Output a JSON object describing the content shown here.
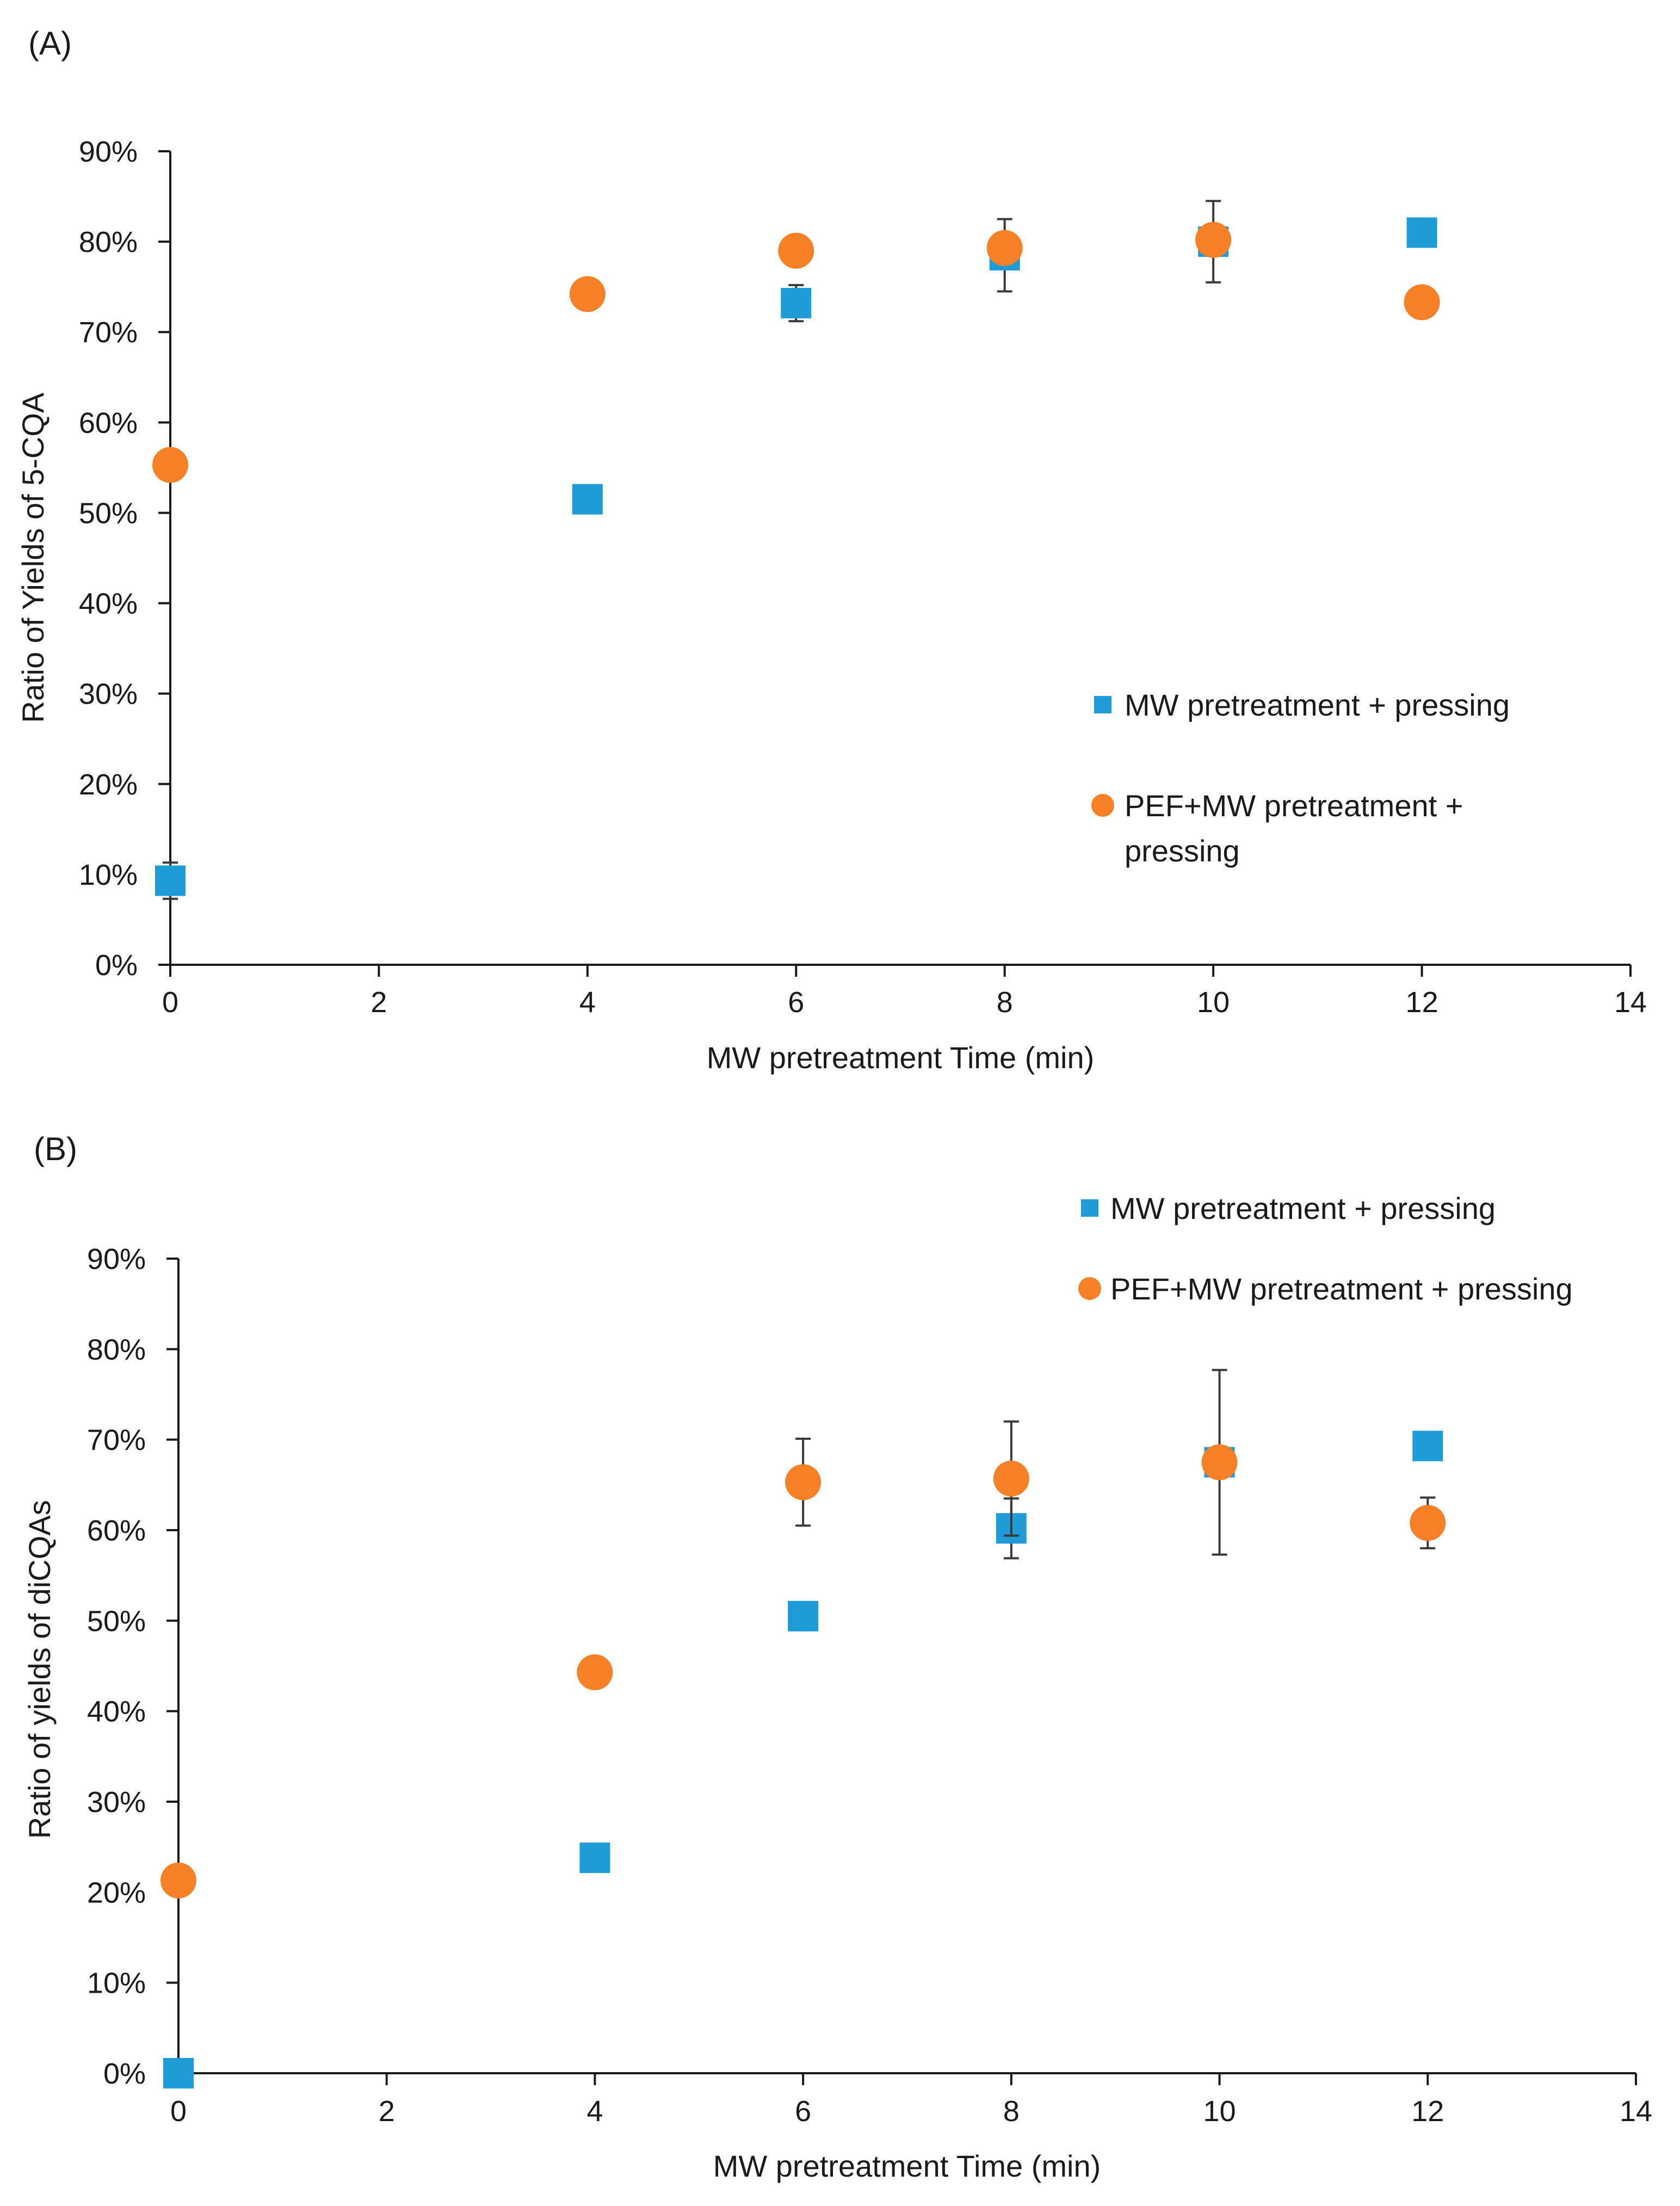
{
  "colors": {
    "series1": "#1f9bd7",
    "series2": "#f58026",
    "axis": "#1a1a1a",
    "errorbar": "#3a3a3a"
  },
  "chart_data": [
    {
      "type": "scatter",
      "panel_label": "(A)",
      "title": "",
      "xlabel": "MW pretreatment Time (min)",
      "ylabel": "Ratio of  Yields of 5-CQA",
      "xlim": [
        0,
        14
      ],
      "ylim": [
        0,
        0.9
      ],
      "x_ticks": [
        0,
        2,
        4,
        6,
        8,
        10,
        12,
        14
      ],
      "y_ticks": [
        0,
        0.1,
        0.2,
        0.3,
        0.4,
        0.5,
        0.6,
        0.7,
        0.8,
        0.9
      ],
      "x_tick_labels": [
        "0",
        "2",
        "4",
        "6",
        "8",
        "10",
        "12",
        "14"
      ],
      "y_tick_labels": [
        "0%",
        "10%",
        "20%",
        "30%",
        "40%",
        "50%",
        "60%",
        "70%",
        "80%",
        "90%"
      ],
      "grid": false,
      "legend_position": "center-right",
      "legend_lines": [
        [
          "MW pretreatment + pressing"
        ],
        [
          "PEF+MW pretreatment +",
          "pressing"
        ]
      ],
      "series": [
        {
          "name": "MW pretreatment + pressing",
          "marker": "square",
          "x": [
            0,
            4,
            6,
            8,
            10,
            12
          ],
          "y": [
            0.093,
            0.515,
            0.732,
            0.785,
            0.8,
            0.81
          ],
          "err": [
            0.02,
            0.005,
            0.02,
            0.04,
            0.045,
            0.005
          ]
        },
        {
          "name": "PEF+MW pretreatment + pressing",
          "marker": "circle",
          "x": [
            0,
            4,
            6,
            8,
            10,
            12
          ],
          "y": [
            0.553,
            0.742,
            0.79,
            0.793,
            0.802,
            0.733
          ],
          "err": [
            0.003,
            0.003,
            0.003,
            0.003,
            0.003,
            0.003
          ]
        }
      ]
    },
    {
      "type": "scatter",
      "panel_label": "(B)",
      "title": "",
      "xlabel": "MW pretreatment Time (min)",
      "ylabel": "Ratio of yields of diCQAs",
      "xlim": [
        0,
        14
      ],
      "ylim": [
        0,
        0.9
      ],
      "x_ticks": [
        0,
        2,
        4,
        6,
        8,
        10,
        12,
        14
      ],
      "y_ticks": [
        0,
        0.1,
        0.2,
        0.3,
        0.4,
        0.5,
        0.6,
        0.7,
        0.8,
        0.9
      ],
      "x_tick_labels": [
        "0",
        "2",
        "4",
        "6",
        "8",
        "10",
        "12",
        "14"
      ],
      "y_tick_labels": [
        "0%",
        "10%",
        "20%",
        "30%",
        "40%",
        "50%",
        "60%",
        "70%",
        "80%",
        "90%"
      ],
      "grid": false,
      "legend_position": "top-right",
      "legend_lines": [
        [
          "MW pretreatment + pressing"
        ],
        [
          "PEF+MW pretreatment + pressing"
        ]
      ],
      "series": [
        {
          "name": "MW pretreatment + pressing",
          "marker": "square",
          "x": [
            0,
            4,
            6,
            8,
            10,
            12
          ],
          "y": [
            0.0,
            0.238,
            0.505,
            0.602,
            0.675,
            0.693
          ],
          "err": [
            0.0,
            0.005,
            0.005,
            0.033,
            0.008,
            0.005
          ]
        },
        {
          "name": "PEF+MW pretreatment + pressing",
          "marker": "circle",
          "x": [
            0,
            4,
            6,
            8,
            10,
            12
          ],
          "y": [
            0.213,
            0.443,
            0.653,
            0.657,
            0.675,
            0.608
          ],
          "err": [
            0.003,
            0.003,
            0.048,
            0.063,
            0.102,
            0.028
          ]
        }
      ]
    }
  ]
}
